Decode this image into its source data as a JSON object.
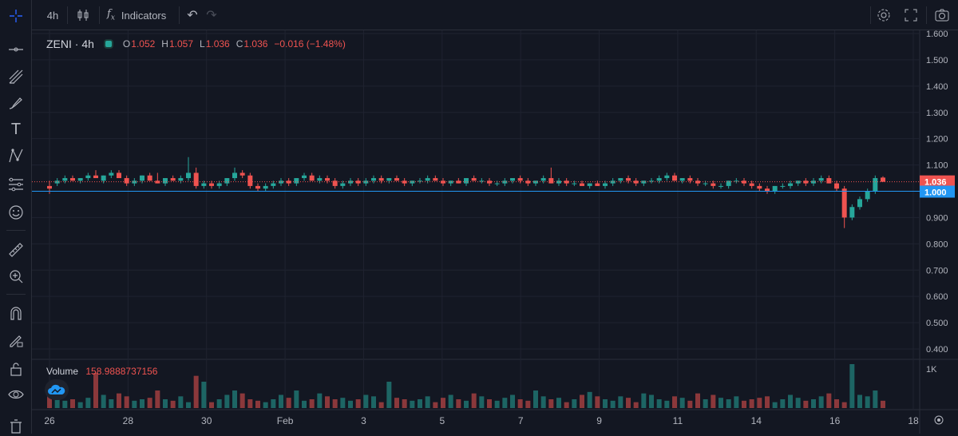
{
  "toolbar": {
    "interval": "4h",
    "indicators_label": "Indicators",
    "icons": [
      "crosshair-icon",
      "trend-line-icon",
      "pitchfork-icon",
      "brush-icon",
      "text-icon",
      "pattern-icon",
      "forecast-icon",
      "emoji-icon",
      "ruler-icon",
      "zoom-icon",
      "magnet-icon",
      "lock-drawing-icon",
      "unlock-icon",
      "eye-icon",
      "trash-icon"
    ]
  },
  "legend": {
    "symbol": "ZENI",
    "interval": "4h",
    "open_label": "O",
    "open": "1.052",
    "high_label": "H",
    "high": "1.057",
    "low_label": "L",
    "low": "1.036",
    "close_label": "C",
    "close": "1.036",
    "change": "−0.016 (−1.48%)"
  },
  "volume": {
    "label": "Volume",
    "value": "158.9888737156"
  },
  "colors": {
    "up": "#26a69a",
    "down": "#ef5350",
    "background": "#131722",
    "grid": "#1f2330",
    "baseline": "#2196f3"
  },
  "chart_data": {
    "type": "candlestick",
    "price_axis": {
      "ticks": [
        "1.600",
        "1.500",
        "1.400",
        "1.300",
        "1.200",
        "1.100",
        "1.000",
        "0.900",
        "0.800",
        "0.700",
        "0.600",
        "0.500",
        "0.400"
      ],
      "ylim": [
        0.38,
        1.61
      ]
    },
    "last_price_label": "1.036",
    "baseline_label": "1.000",
    "volume_axis": {
      "ticks": [
        "1K"
      ]
    },
    "time_axis": {
      "ticks": [
        "26",
        "28",
        "30",
        "Feb",
        "3",
        "5",
        "7",
        "9",
        "11",
        "14",
        "16",
        "18"
      ]
    },
    "candles": [
      {
        "o": 1.02,
        "h": 1.04,
        "l": 0.99,
        "c": 1.01
      },
      {
        "o": 1.03,
        "h": 1.05,
        "l": 1.02,
        "c": 1.04
      },
      {
        "o": 1.04,
        "h": 1.06,
        "l": 1.03,
        "c": 1.05
      },
      {
        "o": 1.05,
        "h": 1.06,
        "l": 1.04,
        "c": 1.04
      },
      {
        "o": 1.04,
        "h": 1.05,
        "l": 1.03,
        "c": 1.05
      },
      {
        "o": 1.05,
        "h": 1.07,
        "l": 1.04,
        "c": 1.06
      },
      {
        "o": 1.06,
        "h": 1.08,
        "l": 1.05,
        "c": 1.05
      },
      {
        "o": 1.04,
        "h": 1.06,
        "l": 1.03,
        "c": 1.06
      },
      {
        "o": 1.06,
        "h": 1.08,
        "l": 1.05,
        "c": 1.07
      },
      {
        "o": 1.07,
        "h": 1.08,
        "l": 1.05,
        "c": 1.05
      },
      {
        "o": 1.05,
        "h": 1.06,
        "l": 1.02,
        "c": 1.03
      },
      {
        "o": 1.03,
        "h": 1.05,
        "l": 1.02,
        "c": 1.04
      },
      {
        "o": 1.04,
        "h": 1.06,
        "l": 1.03,
        "c": 1.06
      },
      {
        "o": 1.06,
        "h": 1.07,
        "l": 1.04,
        "c": 1.04
      },
      {
        "o": 1.04,
        "h": 1.07,
        "l": 1.03,
        "c": 1.03
      },
      {
        "o": 1.03,
        "h": 1.05,
        "l": 1.02,
        "c": 1.05
      },
      {
        "o": 1.05,
        "h": 1.06,
        "l": 1.04,
        "c": 1.04
      },
      {
        "o": 1.04,
        "h": 1.06,
        "l": 1.03,
        "c": 1.05
      },
      {
        "o": 1.05,
        "h": 1.13,
        "l": 1.04,
        "c": 1.07
      },
      {
        "o": 1.07,
        "h": 1.09,
        "l": 1.01,
        "c": 1.02
      },
      {
        "o": 1.02,
        "h": 1.04,
        "l": 1.01,
        "c": 1.03
      },
      {
        "o": 1.03,
        "h": 1.04,
        "l": 1.01,
        "c": 1.02
      },
      {
        "o": 1.02,
        "h": 1.04,
        "l": 1.01,
        "c": 1.03
      },
      {
        "o": 1.03,
        "h": 1.05,
        "l": 1.02,
        "c": 1.05
      },
      {
        "o": 1.05,
        "h": 1.09,
        "l": 1.04,
        "c": 1.07
      },
      {
        "o": 1.07,
        "h": 1.08,
        "l": 1.05,
        "c": 1.06
      },
      {
        "o": 1.06,
        "h": 1.07,
        "l": 1.01,
        "c": 1.02
      },
      {
        "o": 1.02,
        "h": 1.03,
        "l": 1.0,
        "c": 1.01
      },
      {
        "o": 1.01,
        "h": 1.03,
        "l": 1.0,
        "c": 1.02
      },
      {
        "o": 1.02,
        "h": 1.04,
        "l": 1.01,
        "c": 1.03
      },
      {
        "o": 1.03,
        "h": 1.05,
        "l": 1.02,
        "c": 1.04
      },
      {
        "o": 1.04,
        "h": 1.05,
        "l": 1.02,
        "c": 1.03
      },
      {
        "o": 1.03,
        "h": 1.05,
        "l": 1.02,
        "c": 1.05
      },
      {
        "o": 1.05,
        "h": 1.07,
        "l": 1.04,
        "c": 1.06
      },
      {
        "o": 1.06,
        "h": 1.07,
        "l": 1.04,
        "c": 1.04
      },
      {
        "o": 1.04,
        "h": 1.06,
        "l": 1.03,
        "c": 1.05
      },
      {
        "o": 1.05,
        "h": 1.06,
        "l": 1.03,
        "c": 1.04
      },
      {
        "o": 1.04,
        "h": 1.05,
        "l": 1.01,
        "c": 1.02
      },
      {
        "o": 1.02,
        "h": 1.04,
        "l": 1.01,
        "c": 1.03
      },
      {
        "o": 1.03,
        "h": 1.05,
        "l": 1.02,
        "c": 1.04
      },
      {
        "o": 1.04,
        "h": 1.05,
        "l": 1.02,
        "c": 1.03
      },
      {
        "o": 1.03,
        "h": 1.05,
        "l": 1.02,
        "c": 1.04
      },
      {
        "o": 1.04,
        "h": 1.06,
        "l": 1.03,
        "c": 1.05
      },
      {
        "o": 1.05,
        "h": 1.06,
        "l": 1.03,
        "c": 1.04
      },
      {
        "o": 1.04,
        "h": 1.05,
        "l": 1.03,
        "c": 1.05
      },
      {
        "o": 1.05,
        "h": 1.06,
        "l": 1.04,
        "c": 1.04
      },
      {
        "o": 1.04,
        "h": 1.05,
        "l": 1.02,
        "c": 1.03
      },
      {
        "o": 1.03,
        "h": 1.04,
        "l": 1.02,
        "c": 1.04
      },
      {
        "o": 1.04,
        "h": 1.05,
        "l": 1.03,
        "c": 1.04
      },
      {
        "o": 1.04,
        "h": 1.06,
        "l": 1.03,
        "c": 1.05
      },
      {
        "o": 1.05,
        "h": 1.06,
        "l": 1.04,
        "c": 1.04
      },
      {
        "o": 1.04,
        "h": 1.05,
        "l": 1.02,
        "c": 1.03
      },
      {
        "o": 1.03,
        "h": 1.04,
        "l": 1.02,
        "c": 1.04
      },
      {
        "o": 1.04,
        "h": 1.05,
        "l": 1.03,
        "c": 1.03
      },
      {
        "o": 1.03,
        "h": 1.05,
        "l": 1.02,
        "c": 1.05
      },
      {
        "o": 1.05,
        "h": 1.06,
        "l": 1.04,
        "c": 1.04
      },
      {
        "o": 1.04,
        "h": 1.05,
        "l": 1.03,
        "c": 1.04
      },
      {
        "o": 1.04,
        "h": 1.05,
        "l": 1.02,
        "c": 1.03
      },
      {
        "o": 1.03,
        "h": 1.04,
        "l": 1.02,
        "c": 1.03
      },
      {
        "o": 1.03,
        "h": 1.05,
        "l": 1.02,
        "c": 1.04
      },
      {
        "o": 1.04,
        "h": 1.05,
        "l": 1.03,
        "c": 1.05
      },
      {
        "o": 1.05,
        "h": 1.06,
        "l": 1.03,
        "c": 1.04
      },
      {
        "o": 1.04,
        "h": 1.05,
        "l": 1.02,
        "c": 1.03
      },
      {
        "o": 1.03,
        "h": 1.04,
        "l": 1.02,
        "c": 1.04
      },
      {
        "o": 1.04,
        "h": 1.06,
        "l": 1.03,
        "c": 1.05
      },
      {
        "o": 1.05,
        "h": 1.09,
        "l": 1.03,
        "c": 1.03
      },
      {
        "o": 1.03,
        "h": 1.05,
        "l": 1.02,
        "c": 1.04
      },
      {
        "o": 1.04,
        "h": 1.05,
        "l": 1.02,
        "c": 1.03
      },
      {
        "o": 1.03,
        "h": 1.04,
        "l": 1.02,
        "c": 1.03
      },
      {
        "o": 1.03,
        "h": 1.04,
        "l": 1.02,
        "c": 1.02
      },
      {
        "o": 1.02,
        "h": 1.03,
        "l": 1.01,
        "c": 1.03
      },
      {
        "o": 1.03,
        "h": 1.04,
        "l": 1.02,
        "c": 1.02
      },
      {
        "o": 1.02,
        "h": 1.04,
        "l": 1.01,
        "c": 1.03
      },
      {
        "o": 1.03,
        "h": 1.05,
        "l": 1.02,
        "c": 1.04
      },
      {
        "o": 1.04,
        "h": 1.05,
        "l": 1.03,
        "c": 1.05
      },
      {
        "o": 1.05,
        "h": 1.06,
        "l": 1.03,
        "c": 1.04
      },
      {
        "o": 1.04,
        "h": 1.05,
        "l": 1.02,
        "c": 1.03
      },
      {
        "o": 1.03,
        "h": 1.04,
        "l": 1.02,
        "c": 1.04
      },
      {
        "o": 1.04,
        "h": 1.05,
        "l": 1.03,
        "c": 1.04
      },
      {
        "o": 1.04,
        "h": 1.06,
        "l": 1.03,
        "c": 1.05
      },
      {
        "o": 1.05,
        "h": 1.07,
        "l": 1.04,
        "c": 1.06
      },
      {
        "o": 1.06,
        "h": 1.07,
        "l": 1.04,
        "c": 1.04
      },
      {
        "o": 1.04,
        "h": 1.05,
        "l": 1.03,
        "c": 1.05
      },
      {
        "o": 1.05,
        "h": 1.06,
        "l": 1.03,
        "c": 1.04
      },
      {
        "o": 1.04,
        "h": 1.05,
        "l": 1.02,
        "c": 1.03
      },
      {
        "o": 1.03,
        "h": 1.04,
        "l": 1.02,
        "c": 1.03
      },
      {
        "o": 1.03,
        "h": 1.04,
        "l": 1.01,
        "c": 1.02
      },
      {
        "o": 1.02,
        "h": 1.03,
        "l": 1.01,
        "c": 1.02
      },
      {
        "o": 1.02,
        "h": 1.04,
        "l": 1.01,
        "c": 1.04
      },
      {
        "o": 1.04,
        "h": 1.05,
        "l": 1.03,
        "c": 1.04
      },
      {
        "o": 1.04,
        "h": 1.05,
        "l": 1.02,
        "c": 1.03
      },
      {
        "o": 1.03,
        "h": 1.04,
        "l": 1.01,
        "c": 1.02
      },
      {
        "o": 1.02,
        "h": 1.03,
        "l": 1.0,
        "c": 1.01
      },
      {
        "o": 1.01,
        "h": 1.02,
        "l": 0.99,
        "c": 1.0
      },
      {
        "o": 1.0,
        "h": 1.02,
        "l": 0.99,
        "c": 1.02
      },
      {
        "o": 1.02,
        "h": 1.03,
        "l": 1.01,
        "c": 1.02
      },
      {
        "o": 1.02,
        "h": 1.04,
        "l": 1.01,
        "c": 1.03
      },
      {
        "o": 1.03,
        "h": 1.04,
        "l": 1.02,
        "c": 1.04
      },
      {
        "o": 1.04,
        "h": 1.05,
        "l": 1.02,
        "c": 1.03
      },
      {
        "o": 1.03,
        "h": 1.05,
        "l": 1.02,
        "c": 1.04
      },
      {
        "o": 1.04,
        "h": 1.06,
        "l": 1.03,
        "c": 1.05
      },
      {
        "o": 1.05,
        "h": 1.06,
        "l": 1.03,
        "c": 1.03
      },
      {
        "o": 1.03,
        "h": 1.04,
        "l": 1.0,
        "c": 1.01
      },
      {
        "o": 1.01,
        "h": 1.02,
        "l": 0.86,
        "c": 0.9
      },
      {
        "o": 0.9,
        "h": 0.95,
        "l": 0.89,
        "c": 0.94
      },
      {
        "o": 0.94,
        "h": 0.98,
        "l": 0.93,
        "c": 0.97
      },
      {
        "o": 0.97,
        "h": 1.01,
        "l": 0.96,
        "c": 1.0
      },
      {
        "o": 1.0,
        "h": 1.06,
        "l": 0.99,
        "c": 1.05
      },
      {
        "o": 1.052,
        "h": 1.057,
        "l": 1.036,
        "c": 1.036
      }
    ],
    "volumes": [
      40,
      60,
      25,
      30,
      20,
      35,
      120,
      45,
      30,
      50,
      40,
      25,
      30,
      35,
      60,
      30,
      25,
      40,
      20,
      110,
      90,
      20,
      30,
      45,
      60,
      50,
      30,
      25,
      20,
      30,
      45,
      35,
      60,
      25,
      30,
      50,
      40,
      30,
      35,
      25,
      30,
      45,
      40,
      20,
      90,
      35,
      30,
      25,
      30,
      40,
      20,
      35,
      45,
      30,
      25,
      50,
      40,
      30,
      25,
      35,
      45,
      30,
      25,
      60,
      40,
      30,
      35,
      20,
      30,
      45,
      55,
      40,
      30,
      25,
      40,
      35,
      20,
      50,
      45,
      30,
      25,
      40,
      35,
      25,
      50,
      30,
      45,
      35,
      30,
      40,
      25,
      30,
      35,
      40,
      20,
      30,
      45,
      35,
      25,
      30,
      40,
      50,
      30,
      20,
      150,
      45,
      40,
      60,
      25
    ]
  }
}
